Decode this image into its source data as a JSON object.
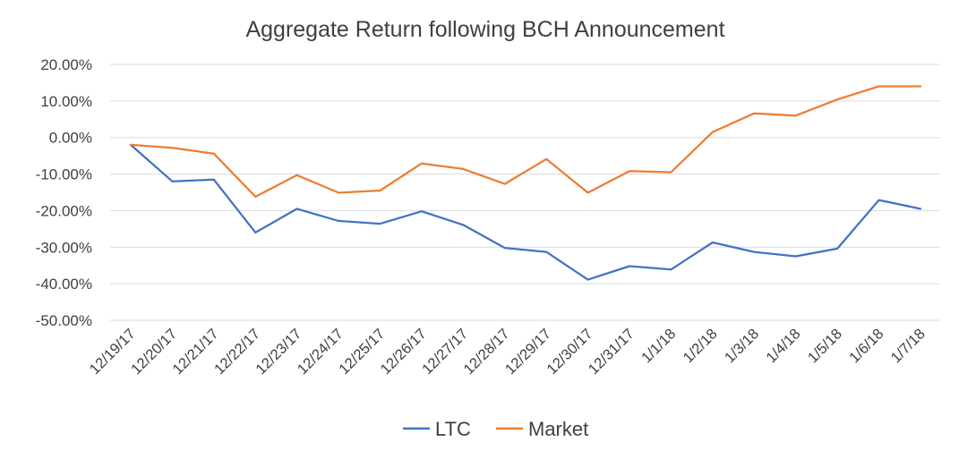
{
  "chart_data": {
    "type": "line",
    "title": "Aggregate Return following BCH Announcement",
    "xlabel": "",
    "ylabel": "",
    "categories": [
      "12/19/17",
      "12/20/17",
      "12/21/17",
      "12/22/17",
      "12/23/17",
      "12/24/17",
      "12/25/17",
      "12/26/17",
      "12/27/17",
      "12/28/17",
      "12/29/17",
      "12/30/17",
      "12/31/17",
      "1/1/18",
      "1/2/18",
      "1/3/18",
      "1/4/18",
      "1/5/18",
      "1/6/18",
      "1/7/18"
    ],
    "ylim": [
      -50,
      20
    ],
    "yticks": [
      20,
      10,
      0,
      -10,
      -20,
      -30,
      -40,
      -50
    ],
    "ytick_labels": [
      "20.00%",
      "10.00%",
      "0.00%",
      "-10.00%",
      "-20.00%",
      "-30.00%",
      "-40.00%",
      "-50.00%"
    ],
    "grid": true,
    "legend_position": "bottom",
    "series": [
      {
        "name": "LTC",
        "color": "#4472c4",
        "values": [
          -2,
          -12,
          -11.5,
          -26,
          -19.5,
          -22.8,
          -23.6,
          -20.2,
          -23.9,
          -30.2,
          -31.3,
          -38.9,
          -35.2,
          -36.1,
          -28.7,
          -31.3,
          -32.5,
          -30.4,
          -17.1,
          -19.5
        ]
      },
      {
        "name": "Market",
        "color": "#ed7d31",
        "values": [
          -2,
          -2.8,
          -4.4,
          -16.2,
          -10.3,
          -15.1,
          -14.5,
          -7.1,
          -8.6,
          -12.7,
          -5.9,
          -15.1,
          -9.2,
          -9.5,
          1.5,
          6.6,
          6,
          10.4,
          14,
          14
        ]
      }
    ]
  }
}
